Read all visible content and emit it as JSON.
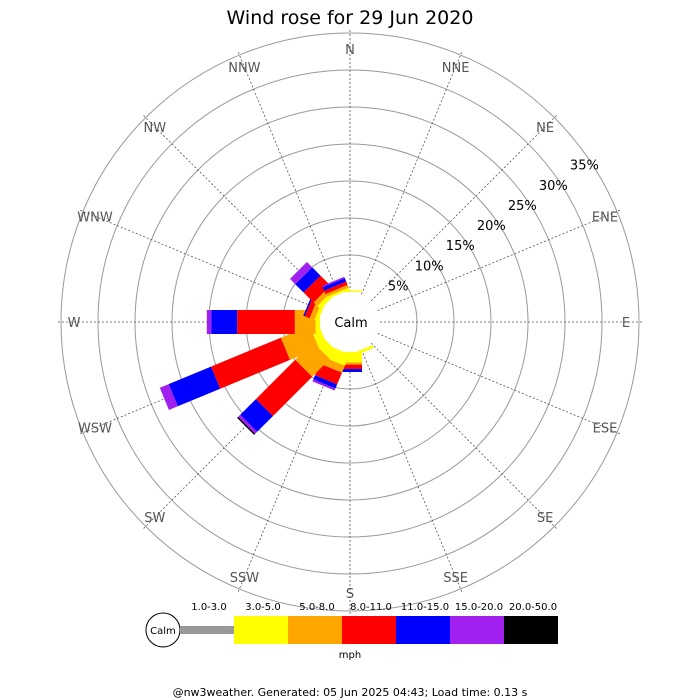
{
  "chart_data": {
    "type": "windrose",
    "title": "Wind rose for 29 Jun 2020",
    "directions": [
      "N",
      "NNE",
      "NE",
      "ENE",
      "E",
      "ESE",
      "SE",
      "SSE",
      "S",
      "SSW",
      "SW",
      "WSW",
      "W",
      "WNW",
      "NW",
      "NNW"
    ],
    "rings": [
      5,
      10,
      15,
      20,
      25,
      30,
      35
    ],
    "ring_labels": [
      "5%",
      "10%",
      "15%",
      "20%",
      "25%",
      "30%",
      "35%"
    ],
    "calm_label": "Calm",
    "speed_bins": [
      {
        "label": "1.0-3.0",
        "color": "#999999"
      },
      {
        "label": "3.0-5.0",
        "color": "#ffff00"
      },
      {
        "label": "5.0-8.0",
        "color": "#ffa500"
      },
      {
        "label": "8.0-11.0",
        "color": "#ff0000"
      },
      {
        "label": "11.0-15.0",
        "color": "#0000ff"
      },
      {
        "label": "15.0-20.0",
        "color": "#a020f0"
      },
      {
        "label": "20.0-50.0",
        "color": "#000000"
      }
    ],
    "units": "mph",
    "series": [
      {
        "direction": "N",
        "values": [
          0,
          0.2,
          0,
          0,
          0,
          0,
          0
        ]
      },
      {
        "direction": "NNE",
        "values": [
          0,
          0,
          0,
          0,
          0,
          0,
          0
        ]
      },
      {
        "direction": "NE",
        "values": [
          0,
          0,
          0,
          0,
          0,
          0,
          0
        ]
      },
      {
        "direction": "ENE",
        "values": [
          0,
          0,
          0,
          0,
          0,
          0,
          0
        ]
      },
      {
        "direction": "E",
        "values": [
          0,
          0,
          0,
          0,
          0,
          0,
          0
        ]
      },
      {
        "direction": "ESE",
        "values": [
          0,
          0,
          0,
          0,
          0,
          0,
          0
        ]
      },
      {
        "direction": "SE",
        "values": [
          0,
          0,
          0,
          0,
          0,
          0,
          0
        ]
      },
      {
        "direction": "SSE",
        "values": [
          0,
          0.4,
          0,
          0,
          0,
          0,
          0
        ]
      },
      {
        "direction": "S",
        "values": [
          0,
          1.4,
          0.3,
          0.6,
          0.4,
          0,
          0
        ]
      },
      {
        "direction": "SSW",
        "values": [
          0,
          1.7,
          1.0,
          1.7,
          0.6,
          0.3,
          0
        ]
      },
      {
        "direction": "SW",
        "values": [
          0,
          1.4,
          3.4,
          7.5,
          3.0,
          0.4,
          0.2
        ]
      },
      {
        "direction": "WSW",
        "values": [
          0,
          1.2,
          4.2,
          10.2,
          6.2,
          1.3,
          0
        ]
      },
      {
        "direction": "W",
        "values": [
          0,
          0.6,
          2.8,
          7.8,
          3.5,
          0.6,
          0
        ]
      },
      {
        "direction": "WNW",
        "values": [
          0,
          0.5,
          0.7,
          0.7,
          0.2,
          0,
          0
        ]
      },
      {
        "direction": "NW",
        "values": [
          0,
          0.6,
          0.7,
          1.9,
          1.6,
          1.0,
          0
        ]
      },
      {
        "direction": "NNW",
        "values": [
          0,
          0.3,
          0.4,
          0.5,
          0.5,
          0.2,
          0
        ]
      }
    ]
  },
  "footer": "@nw3weather. Generated: 05 Jun 2025 04:43; Load time: 0.13 s"
}
